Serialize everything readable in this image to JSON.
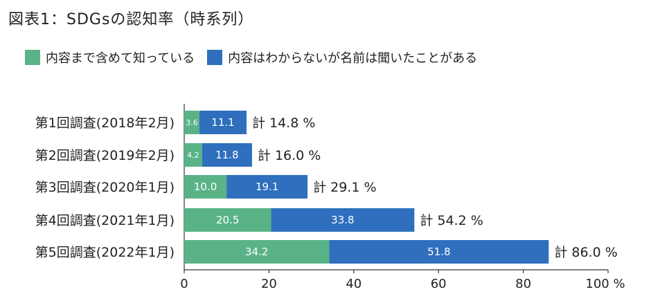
{
  "figure": {
    "title": "図表1：SDGsの認知率（時系列）"
  },
  "legend": [
    {
      "label": "内容まで含めて知っている",
      "color": "#59b387"
    },
    {
      "label": "内容はわからないが名前は聞いたことがある",
      "color": "#2f6fbd"
    }
  ],
  "chart_data": {
    "type": "bar",
    "orientation": "horizontal",
    "stacked": true,
    "categories": [
      "第1回調査(2018年2月)",
      "第2回調査(2019年2月)",
      "第3回調査(2020年1月)",
      "第4回調査(2021年1月)",
      "第5回調査(2022年1月)"
    ],
    "series": [
      {
        "name": "内容まで含めて知っている",
        "color": "#59b387",
        "values": [
          3.6,
          4.2,
          10.0,
          20.5,
          34.2
        ],
        "labels": [
          "3.6",
          "4.2",
          "10.0",
          "20.5",
          "34.2"
        ]
      },
      {
        "name": "内容はわからないが名前は聞いたことがある",
        "color": "#2f6fbd",
        "values": [
          11.1,
          11.8,
          19.1,
          33.8,
          51.8
        ],
        "labels": [
          "11.1",
          "11.8",
          "19.1",
          "33.8",
          "51.8"
        ]
      }
    ],
    "totals": [
      14.8,
      16.0,
      29.1,
      54.2,
      86.0
    ],
    "total_labels": [
      "計 14.8 %",
      "計 16.0 %",
      "計 29.1 %",
      "計 54.2 %",
      "計 86.0 %"
    ],
    "xlim": [
      0,
      100
    ],
    "xticks": [
      0,
      20,
      40,
      60,
      80,
      100
    ],
    "xtick_labels": [
      "0",
      "20",
      "40",
      "60",
      "80",
      "100 %"
    ],
    "grid": false,
    "legend_position": "top-left"
  }
}
